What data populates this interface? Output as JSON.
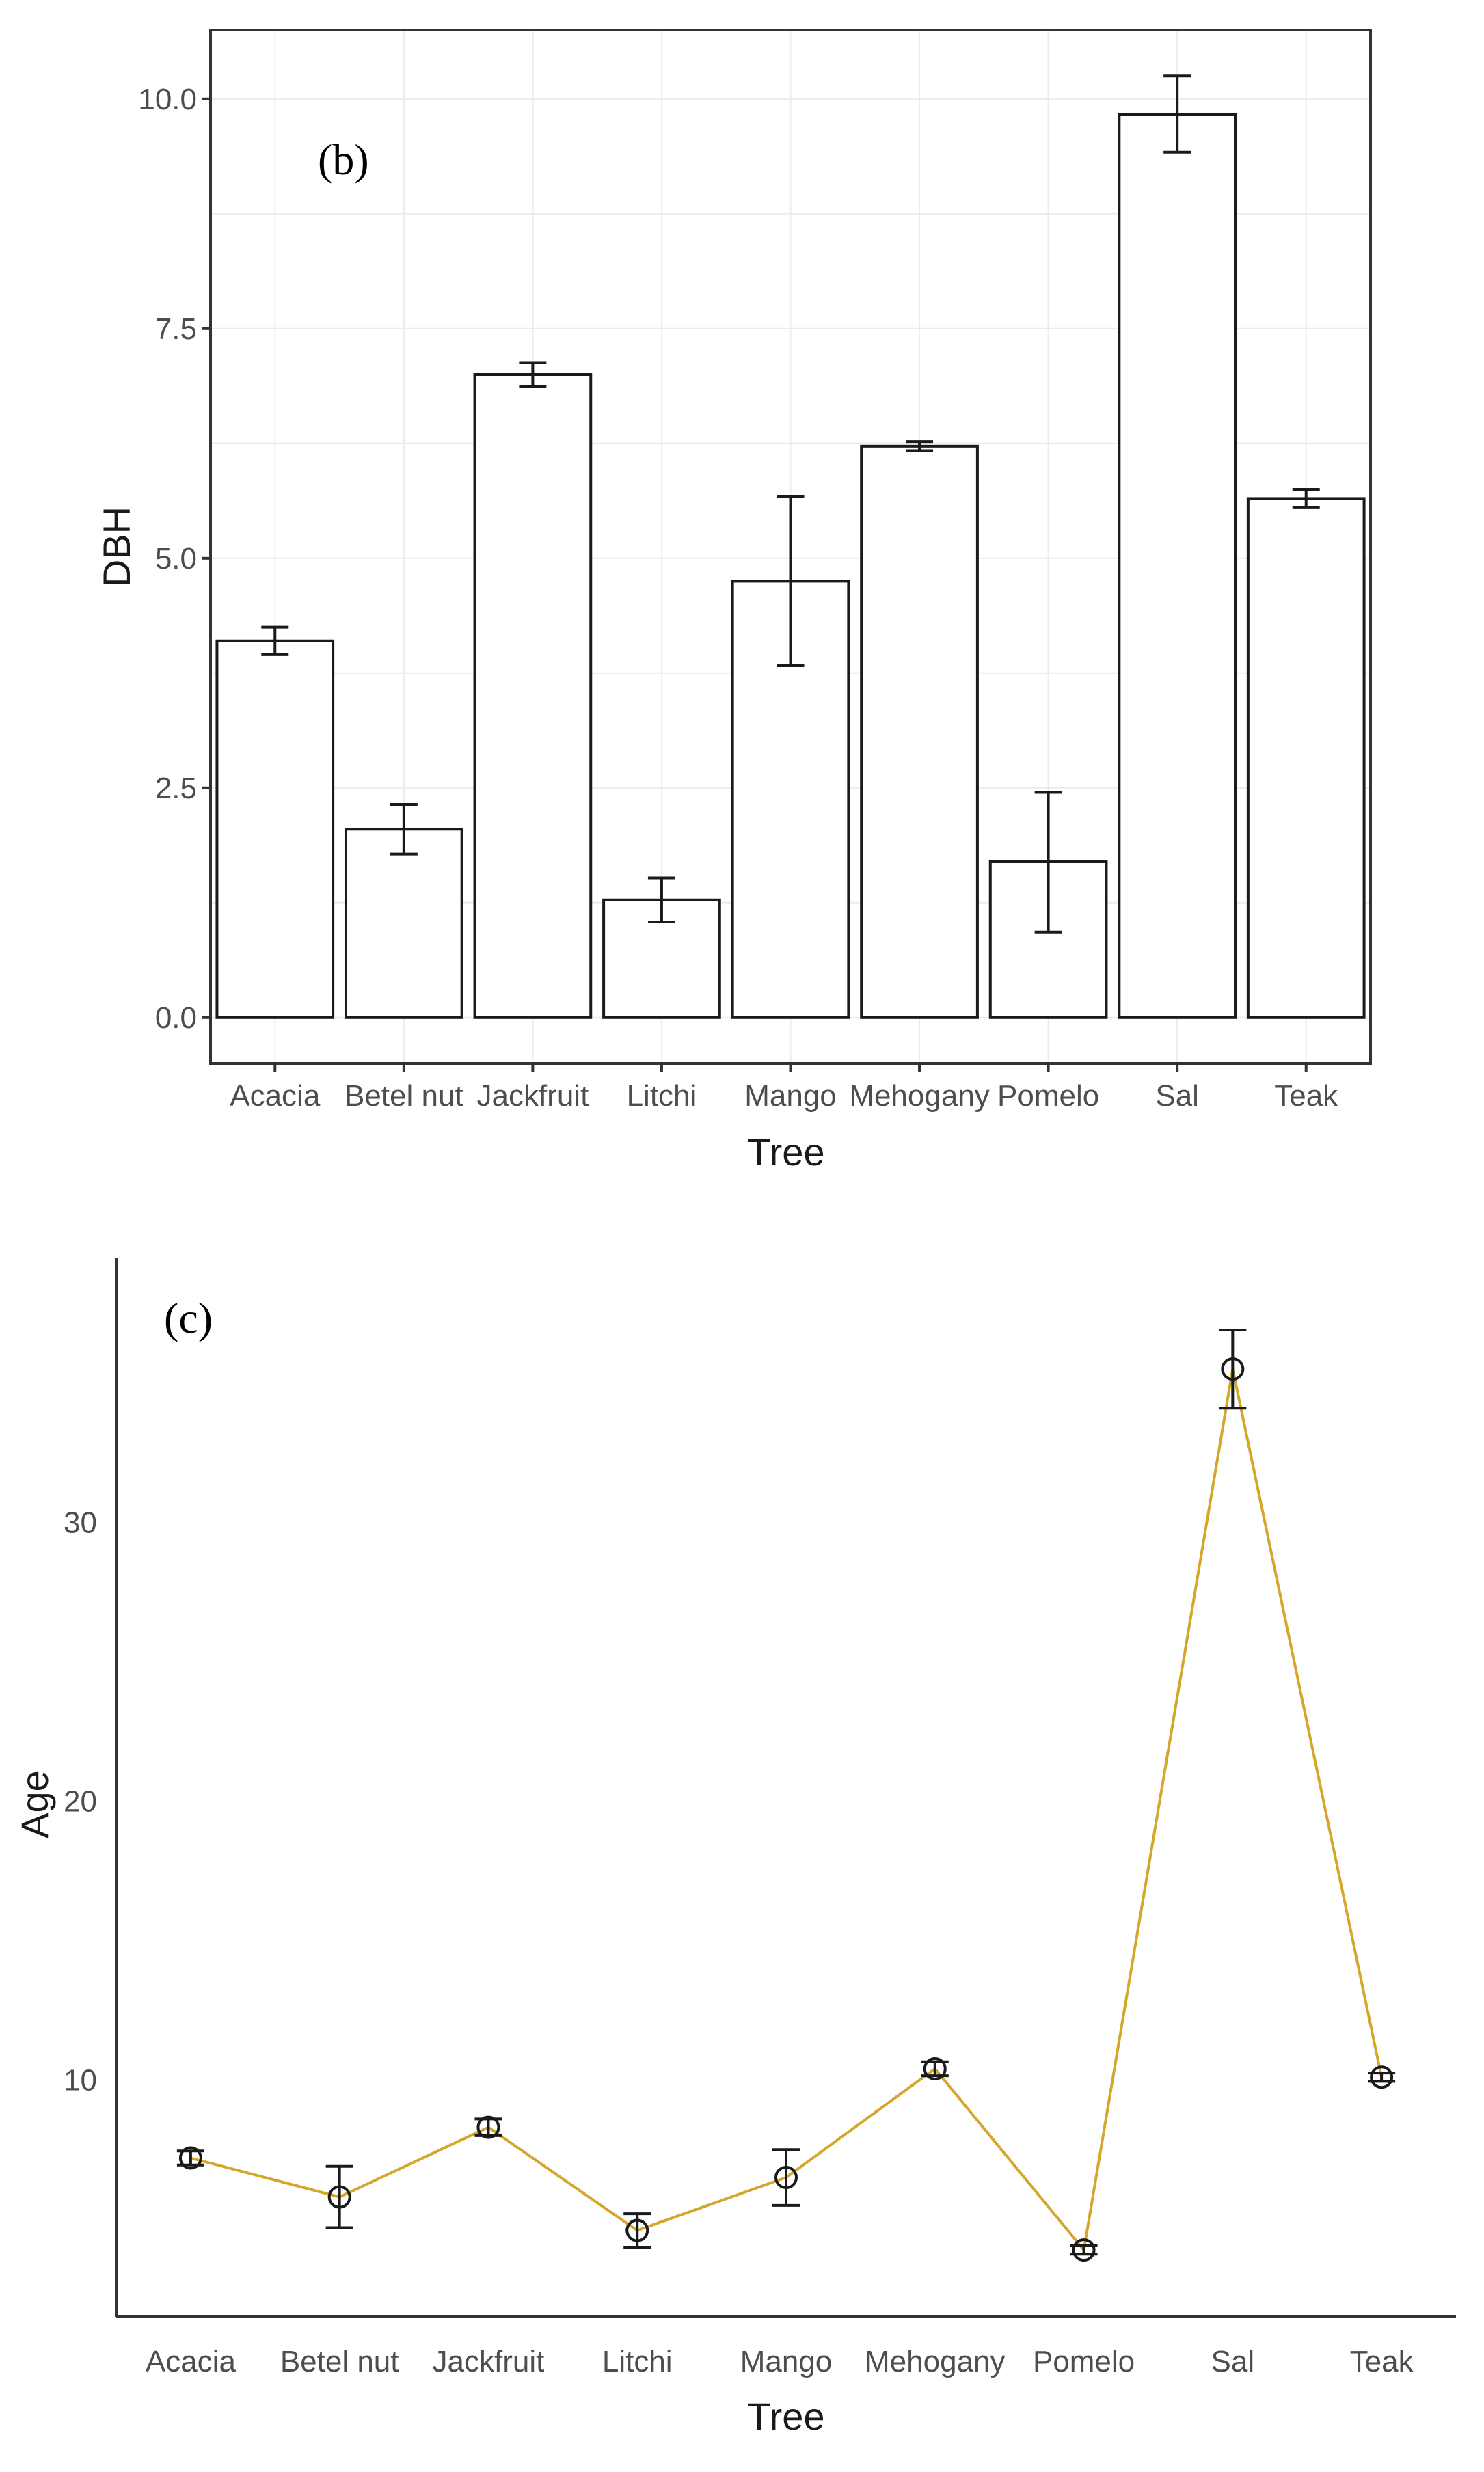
{
  "chart_data": [
    {
      "type": "bar",
      "panel_tag": "(b)",
      "xlabel": "Tree",
      "ylabel": "DBH",
      "categories": [
        "Acacia",
        "Betel nut",
        "Jackfruit",
        "Litchi",
        "Mango",
        "Mehogany",
        "Pomelo",
        "Sal",
        "Teak"
      ],
      "values": [
        4.1,
        2.05,
        7.0,
        1.28,
        4.75,
        6.22,
        1.7,
        9.83,
        5.65
      ],
      "error_low": [
        3.95,
        1.78,
        6.87,
        1.04,
        3.83,
        6.17,
        0.93,
        9.42,
        5.55
      ],
      "error_high": [
        4.25,
        2.32,
        7.13,
        1.52,
        5.67,
        6.27,
        2.45,
        10.25,
        5.75
      ],
      "ylim": [
        -0.5,
        10.75
      ],
      "yticks": [
        0.0,
        2.5,
        5.0,
        7.5,
        10.0
      ],
      "ytick_labels": [
        "0.0",
        "2.5",
        "5.0",
        "7.5",
        "10.0"
      ],
      "grid": true,
      "colors": {
        "bar_fill": "#ffffff",
        "bar_outline": "#1a1a1a",
        "grid": "#ebebeb"
      }
    },
    {
      "type": "line",
      "panel_tag": "(c)",
      "xlabel": "Tree",
      "ylabel": "Age",
      "categories": [
        "Acacia",
        "Betel nut",
        "Jackfruit",
        "Litchi",
        "Mango",
        "Mehogany",
        "Pomelo",
        "Sal",
        "Teak"
      ],
      "values": [
        7.2,
        5.8,
        8.3,
        4.6,
        6.5,
        10.4,
        3.9,
        35.5,
        10.1
      ],
      "error_low": [
        6.95,
        4.7,
        8.0,
        4.0,
        5.5,
        10.15,
        3.75,
        34.1,
        9.95
      ],
      "error_high": [
        7.45,
        6.9,
        8.6,
        5.2,
        7.5,
        10.65,
        4.05,
        36.9,
        10.25
      ],
      "ylim": [
        1.5,
        39.5
      ],
      "yticks": [
        10,
        20,
        30
      ],
      "ytick_labels": [
        "10",
        "20",
        "30"
      ],
      "grid": false,
      "colors": {
        "line": "#d4a72c",
        "marker": "#1a1a1a"
      }
    }
  ]
}
